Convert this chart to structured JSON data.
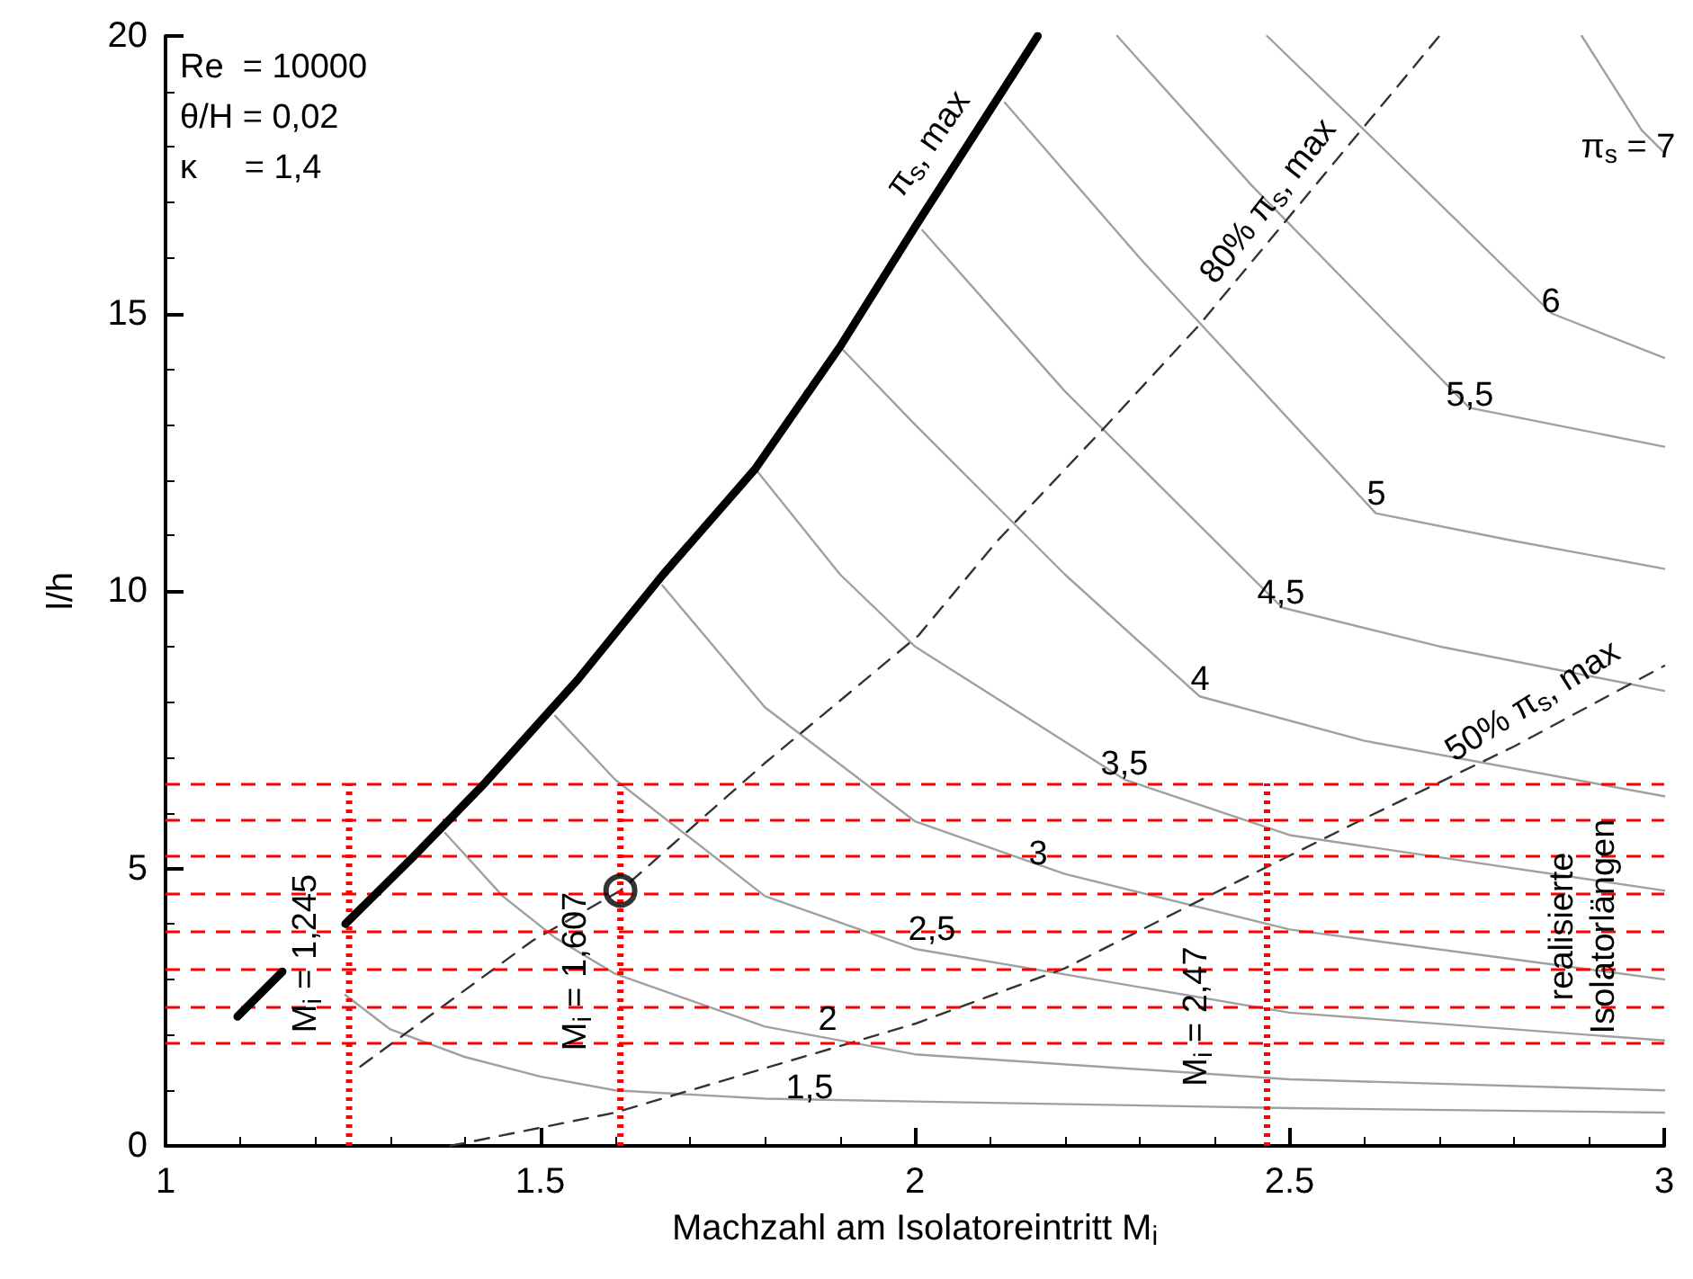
{
  "chart_data": {
    "type": "line",
    "xlabel": "Machzahl am Isolatoreintritt M$_{i}$",
    "ylabel": "l/h",
    "xlim": [
      1,
      3
    ],
    "xticks": [
      1,
      1.5,
      2,
      2.5,
      3
    ],
    "ylim": [
      0,
      20
    ],
    "yticks": [
      0,
      5,
      10,
      15,
      20
    ],
    "grid": false,
    "marker": "none",
    "line_style": "solid",
    "series": [
      {
        "color": "#000000",
        "x": [
          1.096,
          1.156,
          1.2,
          1.24,
          1.33,
          1.427,
          1.55,
          1.663,
          1.787,
          1.9,
          2.005,
          2.164
        ],
        "values": [
          2.33,
          3.14,
          null,
          4.0,
          5.2,
          6.55,
          8.4,
          10.28,
          12.2,
          14.4,
          16.66,
          20
        ]
      },
      {
        "color": "#a0a0a0",
        "x": [
          1.24,
          1.3,
          1.4,
          1.5,
          1.6,
          1.8,
          2.0,
          2.5,
          3
        ],
        "values": [
          2.72,
          2.1,
          1.6,
          1.25,
          1.0,
          0.85,
          0.8,
          0.68,
          0.6
        ]
      },
      {
        "color": "#a0a0a0",
        "x": [
          1.373,
          1.45,
          1.52,
          1.6,
          1.8,
          2.0,
          2.5,
          3
        ],
        "values": [
          5.64,
          4.5,
          3.75,
          3.1,
          2.15,
          1.65,
          1.2,
          1.0
        ]
      },
      {
        "color": "#a0a0a0",
        "x": [
          1.52,
          1.6,
          1.8,
          2.0,
          2.5,
          3
        ],
        "values": [
          7.75,
          6.6,
          4.5,
          3.55,
          2.4,
          1.9
        ]
      },
      {
        "color": "#a0a0a0",
        "x": [
          1.663,
          1.8,
          2.0,
          2.2,
          2.5,
          3
        ],
        "values": [
          10.1,
          7.9,
          5.85,
          4.9,
          3.9,
          3.0
        ]
      },
      {
        "color": "#a0a0a0",
        "x": [
          1.787,
          1.9,
          2.0,
          2.28,
          2.5,
          3
        ],
        "values": [
          12.2,
          10.3,
          9.0,
          6.6,
          5.6,
          4.6
        ]
      },
      {
        "color": "#a0a0a0",
        "x": [
          1.9,
          2.0,
          2.2,
          2.38,
          2.6,
          3
        ],
        "values": [
          14.4,
          13.0,
          10.3,
          8.1,
          7.3,
          6.3
        ]
      },
      {
        "color": "#a0a0a0",
        "x": [
          2.01,
          2.2,
          2.49,
          2.7,
          3
        ],
        "values": [
          16.5,
          13.6,
          9.7,
          9.0,
          8.2
        ]
      },
      {
        "color": "#a0a0a0",
        "x": [
          2.12,
          2.3,
          2.615,
          2.8,
          3
        ],
        "values": [
          18.8,
          16.0,
          11.4,
          10.9,
          10.4
        ]
      },
      {
        "color": "#a0a0a0",
        "x": [
          2.27,
          2.45,
          2.74,
          3
        ],
        "values": [
          20,
          17.3,
          13.3,
          12.6
        ]
      },
      {
        "color": "#a0a0a0",
        "x": [
          2.47,
          2.6,
          2.85,
          3
        ],
        "values": [
          20,
          18.3,
          15.0,
          14.2
        ]
      },
      {
        "color": "#a0a0a0",
        "x": [
          2.89,
          2.97,
          3
        ],
        "values": [
          20,
          18.3,
          17.9
        ]
      },
      {
        "color": "#333333",
        "line_style": "dashed",
        "x": [
          1.26,
          1.49,
          1.607,
          1.8,
          2.005,
          2.11,
          2.25,
          2.38,
          2.7
        ],
        "values": [
          1.43,
          3.7,
          4.6,
          6.9,
          9.2,
          10.9,
          12.9,
          14.8,
          20
        ]
      },
      {
        "color": "#333333",
        "line_style": "dashed",
        "x": [
          1.38,
          1.6,
          1.8,
          2.0,
          2.2,
          2.43,
          2.6,
          2.8,
          3
        ],
        "values": [
          0,
          0.6,
          1.4,
          2.2,
          3.2,
          4.76,
          5.9,
          7.2,
          8.65
        ]
      },
      {
        "color": "#ff0000",
        "line_style": "dotted",
        "x": [
          1.245,
          1.245
        ],
        "values": [
          0,
          6.53
        ]
      },
      {
        "color": "#ff0000",
        "line_style": "dotted",
        "x": [
          1.607,
          1.607
        ],
        "values": [
          0,
          6.53
        ]
      },
      {
        "color": "#ff0000",
        "line_style": "dotted",
        "x": [
          2.47,
          2.47
        ],
        "values": [
          0,
          6.53
        ]
      },
      {
        "type": "scatter",
        "marker": "circle",
        "color": "#000000",
        "x": [
          1.607
        ],
        "values": [
          4.6
        ]
      }
    ],
    "ref_lines": [
      {
        "axis": "y",
        "value": 6.53,
        "color": "#ff0000",
        "line_style": "dashed"
      },
      {
        "axis": "y",
        "value": 5.88,
        "color": "#ff0000",
        "line_style": "dashed"
      },
      {
        "axis": "y",
        "value": 5.23,
        "color": "#ff0000",
        "line_style": "dashed"
      },
      {
        "axis": "y",
        "value": 4.55,
        "color": "#ff0000",
        "line_style": "dashed"
      },
      {
        "axis": "y",
        "value": 3.88,
        "color": "#ff0000",
        "line_style": "dashed"
      },
      {
        "axis": "y",
        "value": 3.2,
        "color": "#ff0000",
        "line_style": "dashed"
      },
      {
        "axis": "y",
        "value": 2.52,
        "color": "#ff0000",
        "line_style": "dashed"
      },
      {
        "axis": "y",
        "value": 1.87,
        "color": "#ff0000",
        "line_style": "dashed"
      }
    ],
    "annotations": [
      "Re  = 10000",
      "θ/H = 0,02",
      "κ     = 1,4",
      "π$_{s}$, max",
      "80% π$_{s}$, max",
      "50% π$_{s}$, max",
      "π$_{s}$ = 7",
      "6",
      "5,5",
      "5",
      "4,5",
      "4",
      "3,5",
      "3",
      "2,5",
      "2",
      "1,5",
      "M$_{i}$ = 1,245",
      "M$_{i}$ = 1,607",
      "M$_{i}$ = 2,47",
      "realisierte\nIsolatorlängen"
    ]
  }
}
